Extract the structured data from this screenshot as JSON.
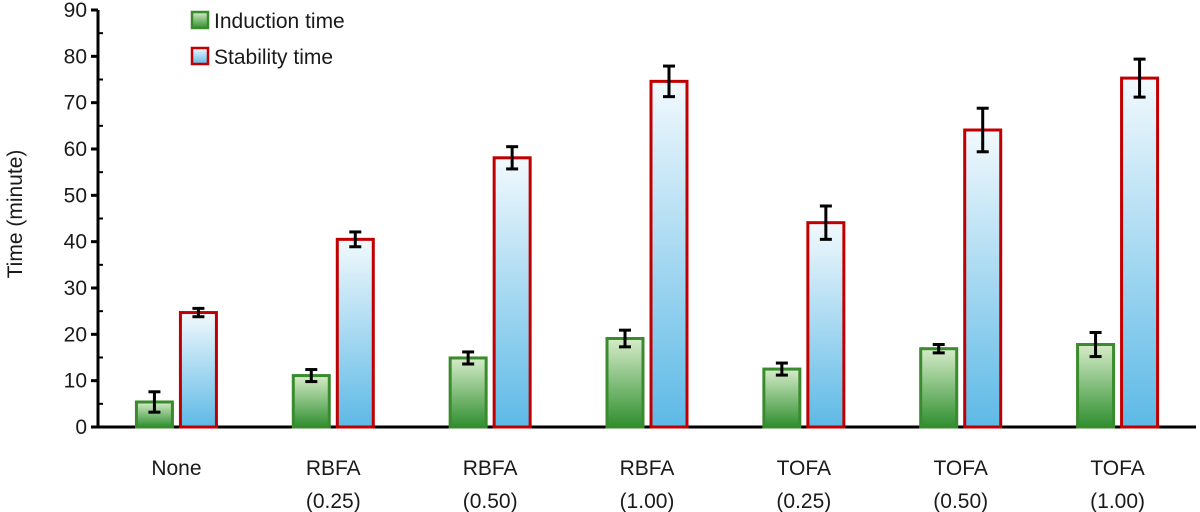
{
  "chart_data": {
    "type": "bar",
    "ylabel": "Time (minute)",
    "xlabel": "",
    "ylim": [
      0,
      90
    ],
    "yticks": [
      0,
      10,
      20,
      30,
      40,
      50,
      60,
      70,
      80,
      90
    ],
    "grid": false,
    "legend_position": "top-left",
    "categories": [
      [
        "None"
      ],
      [
        "RBFA",
        "(0.25)"
      ],
      [
        "RBFA",
        "(0.50)"
      ],
      [
        "RBFA",
        "(1.00)"
      ],
      [
        "TOFA",
        "(0.25)"
      ],
      [
        "TOFA",
        "(0.50)"
      ],
      [
        "TOFA",
        "(1.00)"
      ]
    ],
    "series": [
      {
        "name": "Induction time",
        "values": [
          5.4,
          11.1,
          14.9,
          19.1,
          12.5,
          16.9,
          17.8
        ],
        "errors": [
          2.2,
          1.3,
          1.3,
          1.8,
          1.3,
          0.9,
          2.6
        ],
        "fill_top": "#d6ecc9",
        "fill_bottom": "#2f8f2f",
        "stroke": "#3a8a2e"
      },
      {
        "name": "Stability time",
        "values": [
          24.7,
          40.5,
          58.1,
          74.6,
          44.1,
          64.1,
          75.3
        ],
        "errors": [
          0.9,
          1.6,
          2.4,
          3.3,
          3.6,
          4.7,
          4.1
        ],
        "fill_top": "#f2f9fd",
        "fill_bottom": "#5db9e6",
        "stroke": "#c00000"
      }
    ]
  }
}
